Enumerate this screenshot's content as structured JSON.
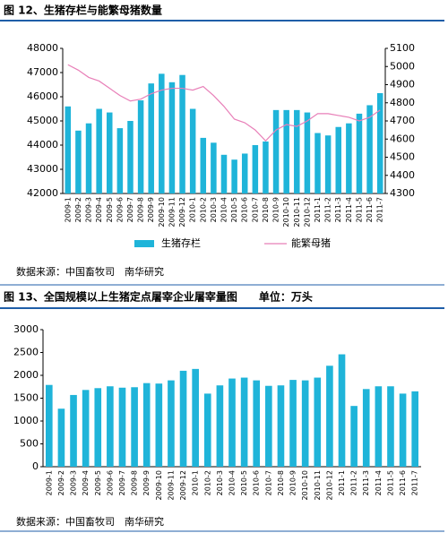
{
  "chart_data": [
    {
      "type": "bar",
      "title": "图 12、生猪存栏与能繁母猪数量",
      "source": "数据来源：中国畜牧司　南华研究",
      "categories": [
        "2009-1",
        "2009-2",
        "2009-3",
        "2009-4",
        "2009-5",
        "2009-6",
        "2009-7",
        "2009-8",
        "2009-9",
        "2009-10",
        "2009-11",
        "2009-12",
        "2010-1",
        "2010-2",
        "2010-3",
        "2010-4",
        "2010-5",
        "2010-6",
        "2010-7",
        "2010-8",
        "2010-9",
        "2010-10",
        "2010-11",
        "2010-12",
        "2011-1",
        "2011-2",
        "2011-3",
        "2011-4",
        "2011-5",
        "2011-6",
        "2011-7"
      ],
      "series": [
        {
          "name": "生猪存栏",
          "color": "#1fb4d9",
          "values": [
            45600,
            44600,
            44900,
            45500,
            45350,
            44700,
            45000,
            45850,
            46550,
            46950,
            46600,
            46900,
            45500,
            44300,
            44100,
            43600,
            43400,
            43650,
            44000,
            44150,
            45450,
            45450,
            45450,
            45350,
            44500,
            44400,
            44750,
            44900,
            45300,
            45650,
            46150
          ]
        },
        {
          "name": "能繁母猪",
          "color": "#e87fb8",
          "axis": "y2",
          "values": [
            5010,
            4980,
            4940,
            4920,
            4880,
            4840,
            4810,
            4820,
            4850,
            4870,
            4880,
            4880,
            4870,
            4890,
            4840,
            4780,
            4710,
            4690,
            4650,
            4590,
            4650,
            4680,
            4670,
            4700,
            4740,
            4740,
            4730,
            4720,
            4700,
            4720,
            4760
          ]
        }
      ],
      "ylim": [
        42000,
        48000
      ],
      "yticks": [
        42000,
        43000,
        44000,
        45000,
        46000,
        47000,
        48000
      ],
      "y2lim": [
        4300,
        5100
      ],
      "y2ticks": [
        4300,
        4400,
        4500,
        4600,
        4700,
        4800,
        4900,
        5000,
        5100
      ],
      "legend": "bottom",
      "grid": false
    },
    {
      "type": "bar",
      "title": "图 13、全国规模以上生猪定点屠宰企业屠宰量图　　单位：万头",
      "source": "数据来源：中国畜牧司　南华研究",
      "categories": [
        "2009-1",
        "2009-2",
        "2009-3",
        "2009-4",
        "2009-5",
        "2009-6",
        "2009-7",
        "2009-8",
        "2009-9",
        "2009-10",
        "2009-11",
        "2009-12",
        "2010-1",
        "2010-2",
        "2010-3",
        "2010-4",
        "2010-5",
        "2010-6",
        "2010-7",
        "2010-8",
        "2010-9",
        "2010-10",
        "2010-11",
        "2010-12",
        "2011-1",
        "2011-2",
        "2011-3",
        "2011-4",
        "2011-5",
        "2011-6",
        "2011-7"
      ],
      "values": [
        1790,
        1270,
        1570,
        1680,
        1720,
        1760,
        1730,
        1740,
        1830,
        1820,
        1890,
        2100,
        2140,
        1600,
        1780,
        1930,
        1950,
        1890,
        1770,
        1780,
        1900,
        1890,
        1950,
        2210,
        2460,
        1330,
        1700,
        1760,
        1760,
        1600,
        1650
      ],
      "color": "#1fb4d9",
      "ylim": [
        0,
        3000
      ],
      "yticks": [
        0,
        500,
        1000,
        1500,
        2000,
        2500,
        3000
      ],
      "grid": false
    }
  ]
}
